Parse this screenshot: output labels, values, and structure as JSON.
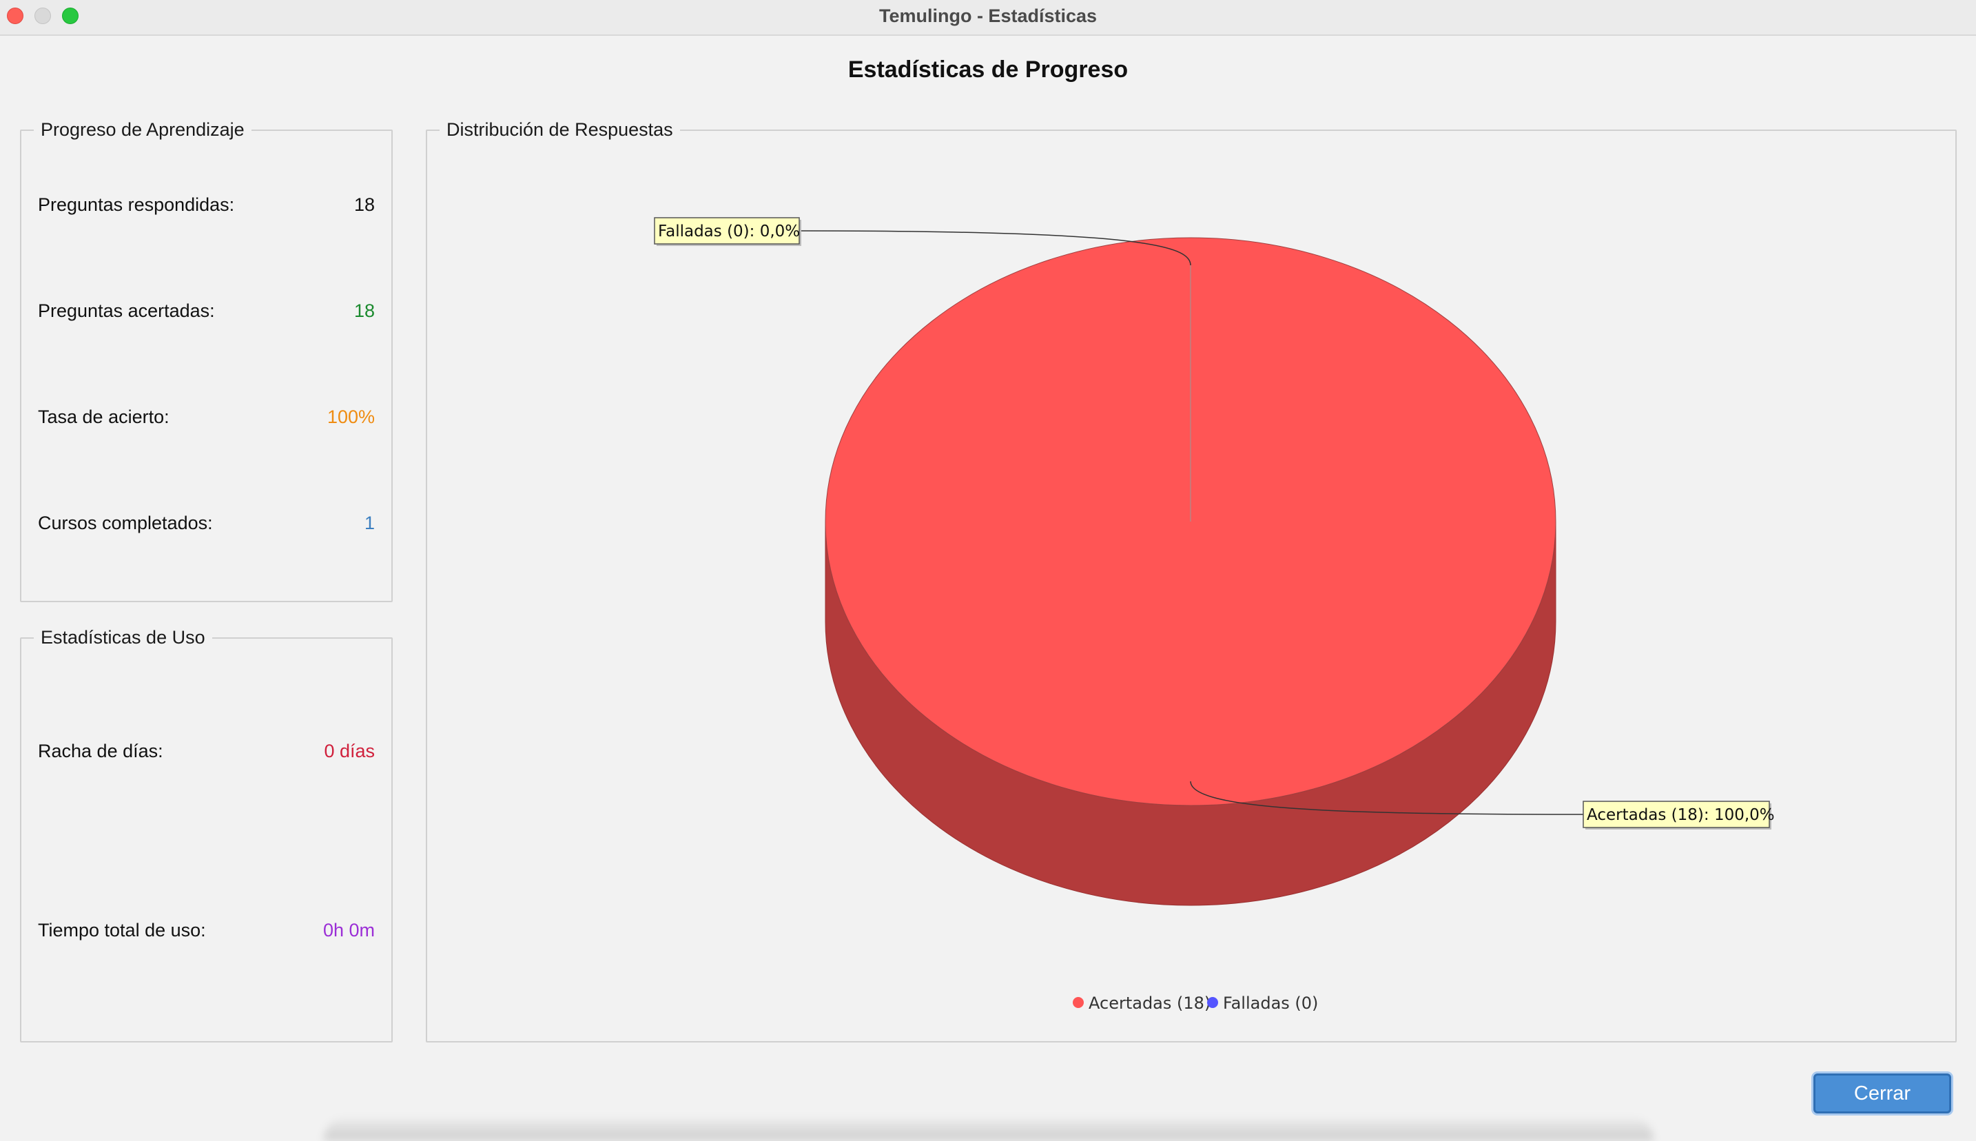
{
  "window": {
    "title": "Temulingo - Estadísticas"
  },
  "page_title": "Estadísticas de Progreso",
  "progress_panel": {
    "title": "Progreso de Aprendizaje",
    "rows": [
      {
        "label": "Preguntas respondidas:",
        "value": "18",
        "color": "#111111"
      },
      {
        "label": "Preguntas acertadas:",
        "value": "18",
        "color": "#1b8a2e"
      },
      {
        "label": "Tasa de acierto:",
        "value": "100%",
        "color": "#ef8c12"
      },
      {
        "label": "Cursos completados:",
        "value": "1",
        "color": "#3c7fc0"
      }
    ]
  },
  "usage_panel": {
    "title": "Estadísticas de Uso",
    "rows": [
      {
        "label": "Racha de días:",
        "value": "0 días",
        "color": "#d0203c"
      },
      {
        "label": "Tiempo total de uso:",
        "value": "0h 0m",
        "color": "#9b2ed6"
      }
    ]
  },
  "chart_panel": {
    "title": "Distribución de Respuestas"
  },
  "chart_data": {
    "type": "pie",
    "style": "3d",
    "categories": [
      "Acertadas",
      "Falladas"
    ],
    "values": [
      18,
      0
    ],
    "percentages": [
      100.0,
      0.0
    ],
    "colors": [
      "#ff5555",
      "#5555ff"
    ],
    "slice_labels": [
      "Acertadas (18): 100,0%",
      "Falladas (0): 0,0%"
    ],
    "legend": [
      "Acertadas (18)",
      "Falladas (0)"
    ],
    "legend_placement": "bottom"
  },
  "buttons": {
    "close": "Cerrar"
  }
}
